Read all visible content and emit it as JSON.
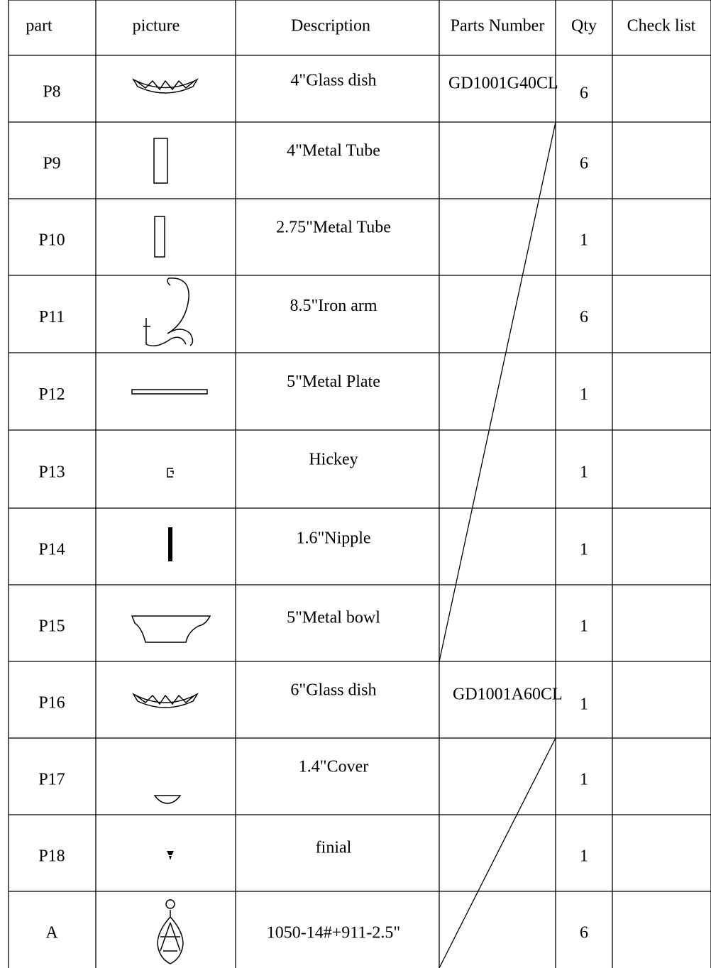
{
  "table": {
    "headers": [
      "part",
      "picture",
      "Description",
      "Parts Number",
      "Qty",
      "Check list"
    ],
    "rows": [
      {
        "part": "P8",
        "description": "4\"Glass dish",
        "parts_number": "GD1001G40CL",
        "qty": "6"
      },
      {
        "part": "P9",
        "description": "4\"Metal Tube",
        "qty": "6"
      },
      {
        "part": "P10",
        "description": "2.75\"Metal Tube",
        "qty": "1"
      },
      {
        "part": "P11",
        "description": "8.5\"Iron arm",
        "qty": "6"
      },
      {
        "part": "P12",
        "description": "5\"Metal Plate",
        "qty": "1"
      },
      {
        "part": "P13",
        "description": "Hickey",
        "qty": "1"
      },
      {
        "part": "P14",
        "description": "1.6\"Nipple",
        "qty": "1"
      },
      {
        "part": "P15",
        "description": "5\"Metal bowl",
        "qty": "1"
      },
      {
        "part": "P16",
        "description": "6\"Glass dish",
        "parts_number": "GD1001A60CL",
        "qty": "1"
      },
      {
        "part": "P17",
        "description": "1.4\"Cover",
        "qty": "1"
      },
      {
        "part": "P18",
        "description": "finial",
        "qty": "1"
      },
      {
        "part": "A",
        "description": "1050-14#+911-2.5\"",
        "qty": "6"
      }
    ]
  }
}
